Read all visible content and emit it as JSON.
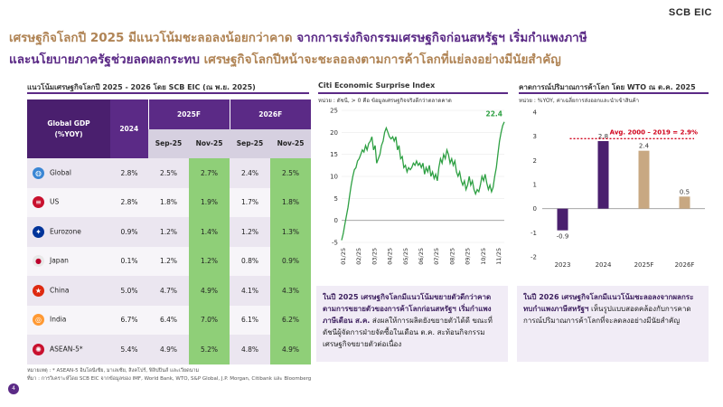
{
  "brand": "SCB EIC",
  "title": {
    "line1_part1": "เศรษฐกิจโลกปี 2025 มีแนวโน้มชะลอลงน้อยกว่าคาด",
    "line1_part2": "จากการเร่งกิจกรรมเศรษฐกิจก่อนสหรัฐฯ เริ่มกำแพงภาษี",
    "line2_part1": "และนโยบายภาครัฐช่วยลดผลกระทบ",
    "line2_part2": "เศรษฐกิจโลกปีหน้าจะชะลอลงตามการค้าโลกที่แย่ลงอย่างมีนัยสำคัญ"
  },
  "table_section": {
    "title": "แนวโน้มเศรษฐกิจโลกปี 2025 - 2026 โดย SCB EIC (ณ พ.ย. 2025)",
    "header_col": "Global GDP",
    "header_unit": "(%YOY)",
    "header_2024": "2024",
    "header_2025": "2025F",
    "header_2026": "2026F",
    "sub_headers": [
      "Sep-25",
      "Nov-25",
      "Sep-25",
      "Nov-25"
    ],
    "rows": [
      {
        "name": "Global",
        "v2024": "2.8%",
        "s25": "2.5%",
        "n25": "2.7%",
        "s26": "2.4%",
        "n26": "2.5%",
        "flag_color": "#3a86d4",
        "flag_glyph": "◍"
      },
      {
        "name": "US",
        "v2024": "2.8%",
        "s25": "1.8%",
        "n25": "1.9%",
        "s26": "1.7%",
        "n26": "1.8%",
        "flag_color": "#c8102e",
        "flag_glyph": "≡"
      },
      {
        "name": "Eurozone",
        "v2024": "0.9%",
        "s25": "1.2%",
        "n25": "1.4%",
        "s26": "1.2%",
        "n26": "1.3%",
        "flag_color": "#003399",
        "flag_glyph": "✦"
      },
      {
        "name": "Japan",
        "v2024": "0.1%",
        "s25": "1.2%",
        "n25": "1.2%",
        "s26": "0.8%",
        "n26": "0.9%",
        "flag_color": "#e8e8e8",
        "flag_glyph": "●"
      },
      {
        "name": "China",
        "v2024": "5.0%",
        "s25": "4.7%",
        "n25": "4.9%",
        "s26": "4.1%",
        "n26": "4.3%",
        "flag_color": "#de2910",
        "flag_glyph": "★"
      },
      {
        "name": "India",
        "v2024": "6.7%",
        "s25": "6.4%",
        "n25": "7.0%",
        "s26": "6.1%",
        "n26": "6.2%",
        "flag_color": "#ff9933",
        "flag_glyph": "◎"
      },
      {
        "name": "ASEAN-5*",
        "v2024": "5.4%",
        "s25": "4.9%",
        "n25": "5.2%",
        "s26": "4.8%",
        "n26": "4.9%",
        "flag_color": "#c8102e",
        "flag_glyph": "✺"
      }
    ]
  },
  "citi_section": {
    "title": "Citi Economic Surprise Index",
    "unit": "หน่วย : ดัชนี, > 0 คือ ข้อมูลเศรษฐกิจจริงดีกว่าตลาดคาด",
    "box_text_bold": "ในปี 2025 เศรษฐกิจโลกมีแนวโน้มขยายตัวดีกว่าคาด ตามการขยายตัวของการค้าโลกก่อนสหรัฐฯ เริ่มกำแพงภาษีเดือน ส.ค.",
    "box_text": "ส่งผลให้การผลิตยังขยายตัวได้ดี ขณะที่ดัชนีผู้จัดการฝ่ายจัดซื้อในเดือน ต.ค. สะท้อนกิจกรรมเศรษฐกิจขยายตัวต่อเนื่อง"
  },
  "wto_section": {
    "title": "คาดการณ์ปริมาณการค้าโลก โดย WTO ณ ต.ค. 2025",
    "unit": "หน่วย : %YOY, ค่าเฉลี่ยการส่งออกและนำเข้าสินค้า",
    "avg_label": "Avg. 2000 – 2019 = 2.9%",
    "box_text_bold": "ในปี 2026 เศรษฐกิจโลกมีแนวโน้มชะลอลงจากผลกระทบกำแพงภาษีสหรัฐฯ",
    "box_text": "เห็นรูปแบบสอดคล้องกับการคาดการณ์ปริมาณการค้าโลกที่จะลดลงอย่างมีนัยสำคัญ"
  },
  "notes": {
    "line1": "หมายเหตุ : * ASEAN-5 อินโดนีเซีย, มาเลเซีย, สิงคโปร์, ฟิลิปปินส์ และเวียดนาม",
    "line2": "ที่มา : การวิเคราะห์โดย SCB EIC จากข้อมูลของ IMF, World Bank, WTO, S&P Global, J.P. Morgan, Citibank และ Bloomberg"
  },
  "page_number": "4",
  "colors": {
    "purple": "#5b2a86",
    "gold": "#b08455",
    "green_line": "#2ea043",
    "highlight": "#8fcf78",
    "avg_red": "#d0021b"
  },
  "chart_data": [
    {
      "type": "line",
      "title": "Citi Economic Surprise Index",
      "ylabel": "Index",
      "ylim": [
        -5,
        25
      ],
      "yticks": [
        -5,
        0,
        5,
        10,
        15,
        20,
        25
      ],
      "xticks": [
        "01/25",
        "02/25",
        "03/25",
        "04/25",
        "05/25",
        "06/25",
        "07/25",
        "08/25",
        "09/25",
        "10/25",
        "11/25"
      ],
      "end_label": "22.4",
      "series": [
        {
          "name": "Citi Economic Surprise Index (Global)",
          "values": [
            -4.5,
            -3,
            -1,
            1,
            3,
            5.5,
            8,
            10,
            11.5,
            12,
            13.5,
            14,
            15,
            16,
            15.5,
            17,
            16,
            17.5,
            18,
            19,
            16,
            17,
            13,
            14,
            15,
            17,
            18,
            20,
            21,
            20,
            19,
            18.5,
            19,
            18,
            19,
            16,
            17,
            14,
            14.5,
            12,
            12.5,
            11,
            12,
            11.5,
            12,
            13,
            12.5,
            13.5,
            12.5,
            13,
            12,
            13,
            10.5,
            12,
            11,
            12.5,
            10,
            11,
            9.5,
            10.5,
            9,
            12,
            14,
            13,
            15,
            14,
            16,
            15,
            13,
            14,
            12.5,
            13.5,
            11,
            10,
            11,
            9,
            8,
            9,
            7,
            8,
            10,
            8,
            9,
            7,
            6,
            7,
            6.5,
            8,
            10,
            9,
            10.5,
            8.5,
            7,
            8,
            6.5,
            7.5,
            10,
            12,
            15,
            18,
            20,
            21.5,
            22.4
          ]
        }
      ]
    },
    {
      "type": "bar",
      "title": "คาดการณ์ปริมาณการค้าโลก โดย WTO ณ ต.ค. 2025",
      "categories": [
        "2023",
        "2024",
        "2025F",
        "2026F"
      ],
      "values": [
        -0.9,
        2.8,
        2.4,
        0.5
      ],
      "labels": [
        "-0.9",
        "2.8",
        "2.4",
        "0.5"
      ],
      "bar_colors": [
        "#4a1f6e",
        "#4a1f6e",
        "#c8a882",
        "#c8a882"
      ],
      "ylim": [
        -2,
        4
      ],
      "yticks": [
        -2,
        -1,
        0,
        1,
        2,
        3,
        4
      ],
      "reference_line": 2.9
    }
  ]
}
